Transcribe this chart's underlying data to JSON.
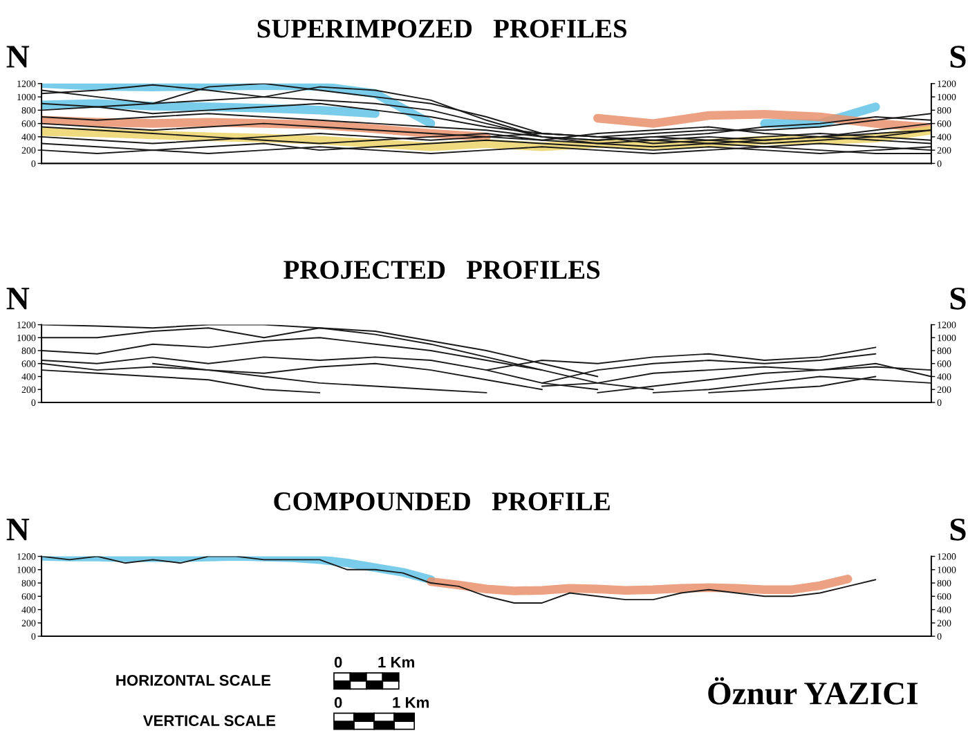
{
  "chart_data": [
    {
      "type": "line",
      "title": "SUPERIMPOZED   PROFILES",
      "annotations": [
        "N",
        "S"
      ],
      "categories": [
        null,
        null,
        null,
        null,
        null,
        null,
        null,
        null,
        null,
        null,
        null,
        null,
        null,
        null,
        null,
        null,
        null
      ],
      "ylim": [
        0,
        1200
      ],
      "yticks": [
        0,
        200,
        400,
        600,
        800,
        1000,
        1200
      ],
      "y2lim": [
        0,
        1200
      ],
      "y2ticks": [
        0,
        200,
        400,
        600,
        800,
        1000,
        1200
      ],
      "grid": false,
      "legend": false,
      "series": [
        {
          "color": "#62c3e6",
          "values": [
            1200,
            1160,
            1150,
            1160,
            1170,
            1160,
            1050,
            600,
            null,
            null,
            null,
            null,
            null,
            null,
            null,
            null,
            null
          ]
        },
        {
          "color": "#62c3e6",
          "values": [
            880,
            900,
            860,
            850,
            830,
            800,
            750,
            null,
            null,
            null,
            null,
            null,
            null,
            600,
            600,
            850,
            null
          ]
        },
        {
          "color": "#e8916c",
          "values": [
            650,
            620,
            600,
            620,
            600,
            580,
            520,
            450,
            400,
            null,
            680,
            600,
            720,
            740,
            700,
            600,
            540
          ]
        },
        {
          "color": "#ecd36a",
          "values": [
            480,
            460,
            430,
            400,
            380,
            350,
            300,
            250,
            300,
            250,
            300,
            280,
            300,
            350,
            350,
            380,
            500
          ]
        },
        {
          "color": "#1a1a1a",
          "values": [
            1100,
            1000,
            900,
            1150,
            1200,
            1100,
            1000,
            900,
            700,
            450,
            400,
            450,
            500,
            500,
            550,
            650,
            750
          ]
        },
        {
          "color": "#1a1a1a",
          "values": [
            1050,
            1100,
            1180,
            1100,
            1000,
            1150,
            1100,
            950,
            650,
            400,
            350,
            400,
            450,
            550,
            600,
            700,
            650
          ]
        },
        {
          "color": "#1a1a1a",
          "values": [
            900,
            850,
            900,
            950,
            1000,
            950,
            900,
            800,
            600,
            400,
            300,
            350,
            400,
            350,
            400,
            500,
            600
          ]
        },
        {
          "color": "#1a1a1a",
          "values": [
            800,
            850,
            750,
            800,
            850,
            900,
            800,
            700,
            550,
            450,
            400,
            300,
            350,
            400,
            450,
            400,
            500
          ]
        },
        {
          "color": "#1a1a1a",
          "values": [
            700,
            650,
            700,
            750,
            700,
            650,
            600,
            550,
            500,
            400,
            350,
            400,
            350,
            300,
            350,
            400,
            350
          ]
        },
        {
          "color": "#1a1a1a",
          "values": [
            600,
            550,
            500,
            550,
            600,
            550,
            500,
            450,
            400,
            450,
            400,
            350,
            300,
            350,
            400,
            350,
            300
          ]
        },
        {
          "color": "#1a1a1a",
          "values": [
            400,
            350,
            300,
            350,
            400,
            450,
            400,
            350,
            400,
            350,
            300,
            250,
            300,
            250,
            300,
            250,
            200
          ]
        },
        {
          "color": "#1a1a1a",
          "values": [
            300,
            250,
            200,
            250,
            300,
            200,
            250,
            300,
            350,
            300,
            250,
            200,
            250,
            200,
            150,
            200,
            250
          ]
        },
        {
          "color": "#1a1a1a",
          "values": [
            200,
            150,
            200,
            150,
            200,
            250,
            200,
            150,
            200,
            250,
            200,
            150,
            200,
            250,
            200,
            150,
            150
          ]
        },
        {
          "color": "#1a1a1a",
          "values": [
            550,
            500,
            450,
            400,
            350,
            300,
            350,
            400,
            450,
            350,
            450,
            500,
            550,
            450,
            400,
            450,
            500
          ]
        }
      ]
    },
    {
      "type": "line",
      "title": "PROJECTED   PROFILES",
      "annotations": [
        "N",
        "S"
      ],
      "categories": [
        null,
        null,
        null,
        null,
        null,
        null,
        null,
        null,
        null,
        null,
        null,
        null,
        null,
        null,
        null,
        null,
        null
      ],
      "ylim": [
        0,
        1200
      ],
      "yticks": [
        0,
        200,
        400,
        600,
        800,
        1000,
        1200
      ],
      "y2lim": [
        0,
        1200
      ],
      "y2ticks": [
        0,
        200,
        400,
        600,
        800,
        1000,
        1200
      ],
      "grid": false,
      "legend": false,
      "series": [
        {
          "color": "#1a1a1a",
          "values": [
            1200,
            1180,
            1150,
            1200,
            1200,
            1150,
            1050,
            900,
            700,
            500,
            null,
            null,
            null,
            null,
            null,
            null,
            null
          ]
        },
        {
          "color": "#1a1a1a",
          "values": [
            1000,
            1000,
            1100,
            1150,
            1000,
            1150,
            1100,
            950,
            800,
            600,
            400,
            null,
            null,
            null,
            null,
            null,
            null
          ]
        },
        {
          "color": "#1a1a1a",
          "values": [
            800,
            750,
            900,
            850,
            950,
            1000,
            900,
            800,
            650,
            500,
            300,
            200,
            null,
            null,
            null,
            null,
            null
          ]
        },
        {
          "color": "#1a1a1a",
          "values": [
            650,
            600,
            700,
            600,
            700,
            650,
            700,
            650,
            500,
            300,
            200,
            null,
            null,
            null,
            null,
            null,
            null
          ]
        },
        {
          "color": "#1a1a1a",
          "values": [
            600,
            500,
            550,
            500,
            450,
            550,
            600,
            500,
            350,
            200,
            null,
            null,
            null,
            null,
            null,
            null,
            null
          ]
        },
        {
          "color": "#1a1a1a",
          "values": [
            500,
            450,
            400,
            350,
            200,
            150,
            null,
            null,
            null,
            null,
            null,
            null,
            null,
            null,
            null,
            null,
            null
          ]
        },
        {
          "color": "#1a1a1a",
          "values": [
            null,
            null,
            600,
            500,
            400,
            300,
            250,
            200,
            150,
            null,
            null,
            null,
            null,
            null,
            null,
            null,
            null
          ]
        },
        {
          "color": "#1a1a1a",
          "values": [
            null,
            null,
            null,
            null,
            null,
            null,
            null,
            null,
            500,
            650,
            600,
            700,
            750,
            650,
            700,
            850,
            null
          ]
        },
        {
          "color": "#1a1a1a",
          "values": [
            null,
            null,
            null,
            null,
            null,
            null,
            null,
            null,
            null,
            300,
            500,
            600,
            650,
            600,
            650,
            750,
            null
          ]
        },
        {
          "color": "#1a1a1a",
          "values": [
            null,
            null,
            null,
            null,
            null,
            null,
            null,
            null,
            null,
            250,
            300,
            450,
            500,
            550,
            500,
            600,
            400
          ]
        },
        {
          "color": "#1a1a1a",
          "values": [
            null,
            null,
            null,
            null,
            null,
            null,
            null,
            null,
            null,
            null,
            150,
            250,
            350,
            450,
            500,
            550,
            500
          ]
        },
        {
          "color": "#1a1a1a",
          "values": [
            null,
            null,
            null,
            null,
            null,
            null,
            null,
            null,
            null,
            null,
            null,
            150,
            200,
            300,
            400,
            350,
            300
          ]
        },
        {
          "color": "#1a1a1a",
          "values": [
            null,
            null,
            null,
            null,
            null,
            null,
            null,
            null,
            null,
            null,
            null,
            null,
            150,
            200,
            250,
            400,
            null
          ]
        }
      ]
    },
    {
      "type": "line",
      "title": "COMPOUNDED   PROFILE",
      "annotations": [
        "N",
        "S",
        "HORIZONTAL SCALE",
        "VERTICAL SCALE",
        "0",
        "1 Km",
        "0",
        "1 Km",
        "Öznur YAZICI"
      ],
      "categories": [
        null,
        null,
        null,
        null,
        null,
        null,
        null,
        null,
        null,
        null,
        null,
        null,
        null,
        null,
        null,
        null,
        null,
        null,
        null,
        null,
        null,
        null,
        null,
        null,
        null,
        null,
        null,
        null,
        null,
        null,
        null,
        null,
        null
      ],
      "ylim": [
        0,
        1200
      ],
      "yticks": [
        0,
        200,
        400,
        600,
        800,
        1000,
        1200
      ],
      "y2lim": [
        0,
        1200
      ],
      "y2ticks": [
        0,
        200,
        400,
        600,
        800,
        1000,
        1200
      ],
      "grid": false,
      "legend": false,
      "series": [
        {
          "color": "#62c3e6",
          "values": [
            1200,
            1190,
            1190,
            1180,
            1180,
            1180,
            1190,
            1200,
            1190,
            1180,
            1150,
            1100,
            1030,
            960,
            850,
            null,
            null,
            null,
            null,
            null,
            null,
            null,
            null,
            null,
            null,
            null,
            null,
            null,
            null,
            null,
            null,
            null,
            null
          ]
        },
        {
          "color": "#e8916c",
          "values": [
            null,
            null,
            null,
            null,
            null,
            null,
            null,
            null,
            null,
            null,
            null,
            null,
            null,
            null,
            820,
            770,
            710,
            680,
            690,
            720,
            710,
            690,
            700,
            720,
            730,
            720,
            700,
            700,
            760,
            860,
            null,
            null,
            null
          ]
        },
        {
          "color": "#1a1a1a",
          "values": [
            1200,
            1150,
            1200,
            1100,
            1150,
            1100,
            1200,
            1200,
            1150,
            1150,
            1150,
            1000,
            1000,
            950,
            800,
            750,
            600,
            500,
            500,
            650,
            600,
            550,
            550,
            650,
            700,
            650,
            600,
            600,
            650,
            750,
            850,
            null,
            null
          ]
        }
      ]
    }
  ]
}
